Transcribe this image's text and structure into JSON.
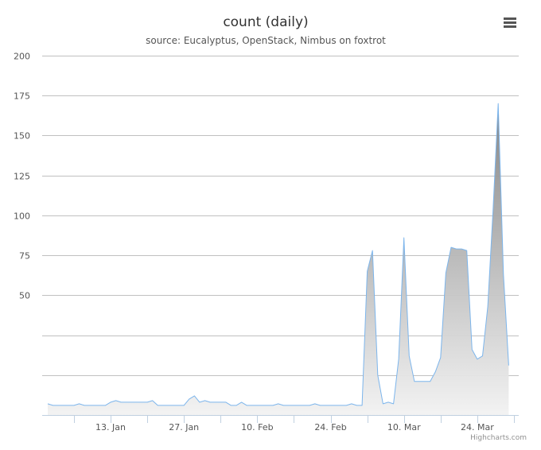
{
  "chart_data": {
    "type": "area",
    "title": "count (daily)",
    "subtitle": "source: Eucalyptus, OpenStack, Nimbus on foxtrot",
    "x_start": "2017-01-01",
    "x_end": "2017-03-31",
    "x_tick_labels": [
      "13. Jan",
      "27. Jan",
      "10. Feb",
      "24. Feb",
      "10. Mar",
      "24. Mar"
    ],
    "x_tick_dates": [
      "2017-01-13",
      "2017-01-27",
      "2017-02-10",
      "2017-02-24",
      "2017-03-10",
      "2017-03-24"
    ],
    "ylim": [
      -25,
      200
    ],
    "y_ticks": [
      0,
      25,
      50,
      75,
      100,
      125,
      150,
      175,
      200
    ],
    "y_tick_labels": [
      "",
      "",
      "50",
      "75",
      "100",
      "125",
      "150",
      "175",
      "200"
    ],
    "grid": true,
    "legend": false,
    "series": [
      {
        "color": "#7cb5ec",
        "points": [
          [
            "2017-01-01",
            -18
          ],
          [
            "2017-01-02",
            -19
          ],
          [
            "2017-01-03",
            -19
          ],
          [
            "2017-01-04",
            -19
          ],
          [
            "2017-01-05",
            -19
          ],
          [
            "2017-01-06",
            -19
          ],
          [
            "2017-01-07",
            -18
          ],
          [
            "2017-01-08",
            -19
          ],
          [
            "2017-01-09",
            -19
          ],
          [
            "2017-01-10",
            -19
          ],
          [
            "2017-01-11",
            -19
          ],
          [
            "2017-01-12",
            -19
          ],
          [
            "2017-01-13",
            -17
          ],
          [
            "2017-01-14",
            -16
          ],
          [
            "2017-01-15",
            -17
          ],
          [
            "2017-01-16",
            -17
          ],
          [
            "2017-01-17",
            -17
          ],
          [
            "2017-01-18",
            -17
          ],
          [
            "2017-01-19",
            -17
          ],
          [
            "2017-01-20",
            -17
          ],
          [
            "2017-01-21",
            -16
          ],
          [
            "2017-01-22",
            -19
          ],
          [
            "2017-01-23",
            -19
          ],
          [
            "2017-01-24",
            -19
          ],
          [
            "2017-01-25",
            -19
          ],
          [
            "2017-01-26",
            -19
          ],
          [
            "2017-01-27",
            -19
          ],
          [
            "2017-01-28",
            -15
          ],
          [
            "2017-01-29",
            -13
          ],
          [
            "2017-01-30",
            -17
          ],
          [
            "2017-01-31",
            -16
          ],
          [
            "2017-02-01",
            -17
          ],
          [
            "2017-02-02",
            -17
          ],
          [
            "2017-02-03",
            -17
          ],
          [
            "2017-02-04",
            -17
          ],
          [
            "2017-02-05",
            -19
          ],
          [
            "2017-02-06",
            -19
          ],
          [
            "2017-02-07",
            -17
          ],
          [
            "2017-02-08",
            -19
          ],
          [
            "2017-02-09",
            -19
          ],
          [
            "2017-02-10",
            -19
          ],
          [
            "2017-02-11",
            -19
          ],
          [
            "2017-02-12",
            -19
          ],
          [
            "2017-02-13",
            -19
          ],
          [
            "2017-02-14",
            -18
          ],
          [
            "2017-02-15",
            -19
          ],
          [
            "2017-02-16",
            -19
          ],
          [
            "2017-02-17",
            -19
          ],
          [
            "2017-02-18",
            -19
          ],
          [
            "2017-02-19",
            -19
          ],
          [
            "2017-02-20",
            -19
          ],
          [
            "2017-02-21",
            -18
          ],
          [
            "2017-02-22",
            -19
          ],
          [
            "2017-02-23",
            -19
          ],
          [
            "2017-02-24",
            -19
          ],
          [
            "2017-02-25",
            -19
          ],
          [
            "2017-02-26",
            -19
          ],
          [
            "2017-02-27",
            -19
          ],
          [
            "2017-02-28",
            -18
          ],
          [
            "2017-03-01",
            -19
          ],
          [
            "2017-03-02",
            -19
          ],
          [
            "2017-03-03",
            65
          ],
          [
            "2017-03-04",
            78
          ],
          [
            "2017-03-05",
            0
          ],
          [
            "2017-03-06",
            -18
          ],
          [
            "2017-03-07",
            -17
          ],
          [
            "2017-03-08",
            -18
          ],
          [
            "2017-03-09",
            10
          ],
          [
            "2017-03-10",
            86
          ],
          [
            "2017-03-11",
            12
          ],
          [
            "2017-03-12",
            -4
          ],
          [
            "2017-03-13",
            -4
          ],
          [
            "2017-03-14",
            -4
          ],
          [
            "2017-03-15",
            -4
          ],
          [
            "2017-03-16",
            2
          ],
          [
            "2017-03-17",
            11
          ],
          [
            "2017-03-18",
            64
          ],
          [
            "2017-03-19",
            80
          ],
          [
            "2017-03-20",
            79
          ],
          [
            "2017-03-21",
            79
          ],
          [
            "2017-03-22",
            78
          ],
          [
            "2017-03-23",
            16
          ],
          [
            "2017-03-24",
            10
          ],
          [
            "2017-03-25",
            12
          ],
          [
            "2017-03-26",
            43
          ],
          [
            "2017-03-27",
            103
          ],
          [
            "2017-03-28",
            170
          ],
          [
            "2017-03-29",
            63
          ],
          [
            "2017-03-30",
            6
          ]
        ]
      }
    ]
  },
  "menu_icon": "hamburger-menu-icon",
  "credits": "Highcharts.com"
}
